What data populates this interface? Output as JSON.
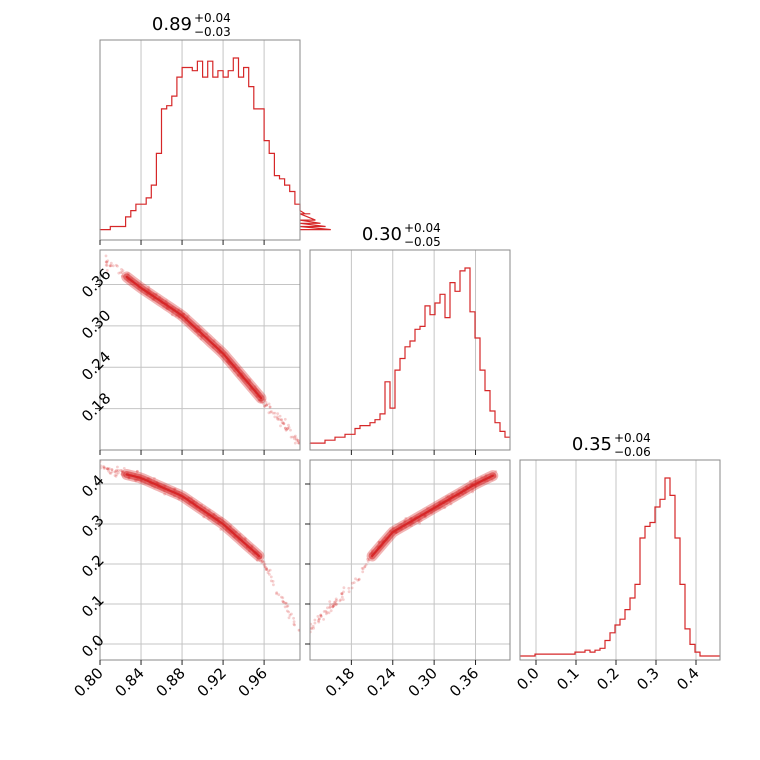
{
  "chart_data": {
    "type": "corner",
    "parameters": [
      "p1",
      "p2",
      "p3"
    ],
    "color": "#d62728",
    "ranges": {
      "p1": [
        0.8,
        0.995
      ],
      "p2": [
        0.12,
        0.41
      ],
      "p3": [
        -0.04,
        0.46
      ]
    },
    "ticks": {
      "p1": {
        "values": [
          0.8,
          0.84,
          0.88,
          0.92,
          0.96
        ],
        "labels": [
          "0.80",
          "0.84",
          "0.88",
          "0.92",
          "0.96"
        ]
      },
      "p2": {
        "values": [
          0.18,
          0.24,
          0.3,
          0.36
        ],
        "labels": [
          "0.18",
          "0.24",
          "0.30",
          "0.36"
        ]
      },
      "p3": {
        "values": [
          0.0,
          0.1,
          0.2,
          0.3,
          0.4
        ],
        "labels": [
          "0.0",
          "0.1",
          "0.2",
          "0.3",
          "0.4"
        ]
      }
    },
    "titles": [
      {
        "param": "p1",
        "median": "0.89",
        "plus": "+0.04",
        "minus": "−0.03"
      },
      {
        "param": "p2",
        "median": "0.30",
        "plus": "+0.04",
        "minus": "−0.05"
      },
      {
        "param": "p3",
        "median": "0.35",
        "plus": "+0.04",
        "minus": "−0.06"
      }
    ],
    "histograms": {
      "p1": {
        "edges_start": 0.8,
        "bin_width": 0.005,
        "counts": [
          2,
          2,
          3,
          3,
          3,
          6,
          8,
          10,
          10,
          12,
          16,
          26,
          40,
          41,
          44,
          50,
          53,
          53,
          52,
          55,
          50,
          55,
          50,
          52,
          50,
          52,
          56,
          50,
          53,
          47,
          40,
          40,
          30,
          26,
          19,
          18,
          16,
          14,
          10,
          8,
          7,
          7,
          5,
          4,
          3,
          2
        ]
      },
      "p2": {
        "edges_start": 0.12,
        "bin_width": 0.00725,
        "counts": [
          1,
          1,
          1,
          2,
          2,
          3,
          3,
          4,
          4,
          6,
          7,
          7,
          8,
          9,
          11,
          22,
          13,
          26,
          30,
          34,
          36,
          40,
          41,
          48,
          45,
          49,
          52,
          44,
          56,
          53,
          60,
          61,
          46,
          37,
          26,
          19,
          12,
          8,
          5,
          3
        ]
      },
      "p3": {
        "edges_start": -0.04,
        "bin_width": 0.0125,
        "counts": [
          0,
          0,
          0,
          1,
          1,
          1,
          1,
          1,
          1,
          1,
          1,
          2,
          2,
          3,
          2,
          3,
          4,
          8,
          12,
          16,
          19,
          24,
          30,
          37,
          61,
          67,
          69,
          77,
          81,
          92,
          83,
          61,
          37,
          14,
          6,
          2,
          0,
          0,
          0,
          0
        ]
      }
    },
    "scatter_2d": [
      {
        "x_param": "p1",
        "y_param": "p2",
        "ridge_x": [
          0.805,
          0.84,
          0.88,
          0.92,
          0.96,
          0.995
        ],
        "ridge_y": [
          0.395,
          0.355,
          0.315,
          0.26,
          0.19,
          0.13
        ],
        "contour_x_range": [
          0.826,
          0.957
        ]
      },
      {
        "x_param": "p1",
        "y_param": "p3",
        "ridge_x": [
          0.8,
          0.84,
          0.88,
          0.92,
          0.955,
          0.995
        ],
        "ridge_y": [
          0.44,
          0.415,
          0.37,
          0.3,
          0.22,
          0.03
        ],
        "contour_x_range": [
          0.826,
          0.955
        ]
      },
      {
        "x_param": "p2",
        "y_param": "p3",
        "ridge_x": [
          0.12,
          0.18,
          0.21,
          0.24,
          0.27,
          0.3,
          0.33,
          0.36,
          0.39
        ],
        "ridge_y": [
          0.04,
          0.14,
          0.22,
          0.28,
          0.31,
          0.34,
          0.37,
          0.4,
          0.425
        ],
        "contour_x_range": [
          0.21,
          0.385
        ]
      }
    ]
  }
}
